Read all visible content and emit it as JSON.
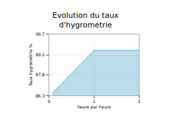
{
  "chart_data": {
    "type": "area",
    "title": "Evolution du taux d'hygrométrie",
    "x_label": "heure par heure",
    "y_label": "Taux hygrométrie %",
    "x": [
      0.08,
      1.0,
      2.0
    ],
    "values": [
      86.5,
      89.55,
      89.55
    ],
    "color": "#55aacc",
    "xlim": [
      0,
      2
    ],
    "ylim": [
      86.3,
      90.7
    ],
    "xticks": [
      0,
      1,
      2
    ],
    "yticks": [
      86.3,
      87.8,
      89.2,
      90.7
    ],
    "grid": true
  }
}
